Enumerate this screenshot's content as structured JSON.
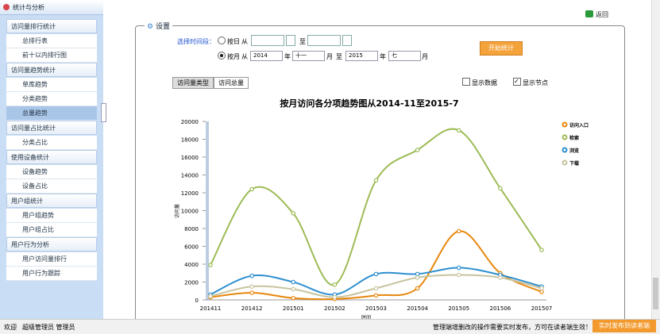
{
  "header": {
    "title": "统计与分析",
    "back": "返回"
  },
  "sidebar": [
    {
      "title": "访问量排行统计",
      "items": [
        "总排行表",
        "前十以内排行图"
      ]
    },
    {
      "title": "访问量趋势统计",
      "items": [
        "单库趋势",
        "分类趋势",
        "总量趋势"
      ]
    },
    {
      "title": "访问量占比统计",
      "items": [
        "分类占比"
      ]
    },
    {
      "title": "使用设备统计",
      "items": [
        "设备趋势",
        "设备占比"
      ]
    },
    {
      "title": "用户组统计",
      "items": [
        "用户组趋势",
        "用户组占比"
      ]
    },
    {
      "title": "用户行为分析",
      "items": [
        "用户访问量排行",
        "用户行为跟踪"
      ]
    }
  ],
  "settings": {
    "legend": "设置",
    "period_label": "选择时间段：",
    "by_day": "按日",
    "from": "从",
    "to": "至",
    "by_month": "按月",
    "from_year": "2014",
    "year": "年",
    "from_month": "十一",
    "month": "月",
    "to_year": "2015",
    "to_month": "七",
    "start_button": "开始统计",
    "tabs": [
      "访问量类型",
      "访问总量"
    ],
    "show_data": "显示数据",
    "show_nodes": "显示节点"
  },
  "chart_data": {
    "type": "line",
    "title": "按月访问各分项趋势图从2014-11至2015-7",
    "y_label": "访问量",
    "x_label": "时间",
    "categories": [
      "201411",
      "201412",
      "201501",
      "201502",
      "201503",
      "201504",
      "201505",
      "201506",
      "201507"
    ],
    "series": [
      {
        "name": "访问入口",
        "color": "#e8870e",
        "values": [
          300,
          800,
          200,
          100,
          500,
          1300,
          7700,
          3000,
          900
        ]
      },
      {
        "name": "检索",
        "color": "#9dbb55",
        "values": [
          3900,
          12400,
          9700,
          1700,
          13400,
          16800,
          19000,
          12500,
          5600
        ]
      },
      {
        "name": "浏览",
        "color": "#2e8fd0",
        "values": [
          600,
          2700,
          2000,
          600,
          2900,
          2900,
          3600,
          2800,
          1500
        ]
      },
      {
        "name": "下载",
        "color": "#c8c4a0",
        "values": [
          400,
          1500,
          1200,
          300,
          1300,
          2500,
          2800,
          2500,
          1300
        ]
      }
    ],
    "ylim": [
      0,
      20000
    ],
    "yticks": [
      0,
      2000,
      4000,
      6000,
      8000,
      10000,
      12000,
      14000,
      16000,
      18000,
      20000
    ],
    "legend": "right",
    "smooth": true,
    "markers": true
  },
  "footer": {
    "welcome": "欢迎",
    "user": "超级管理员 管理员",
    "notice": "管理端增删改的操作需要实时发布，方可在读者端生效！",
    "publish_button": "实时发布到读者端"
  }
}
